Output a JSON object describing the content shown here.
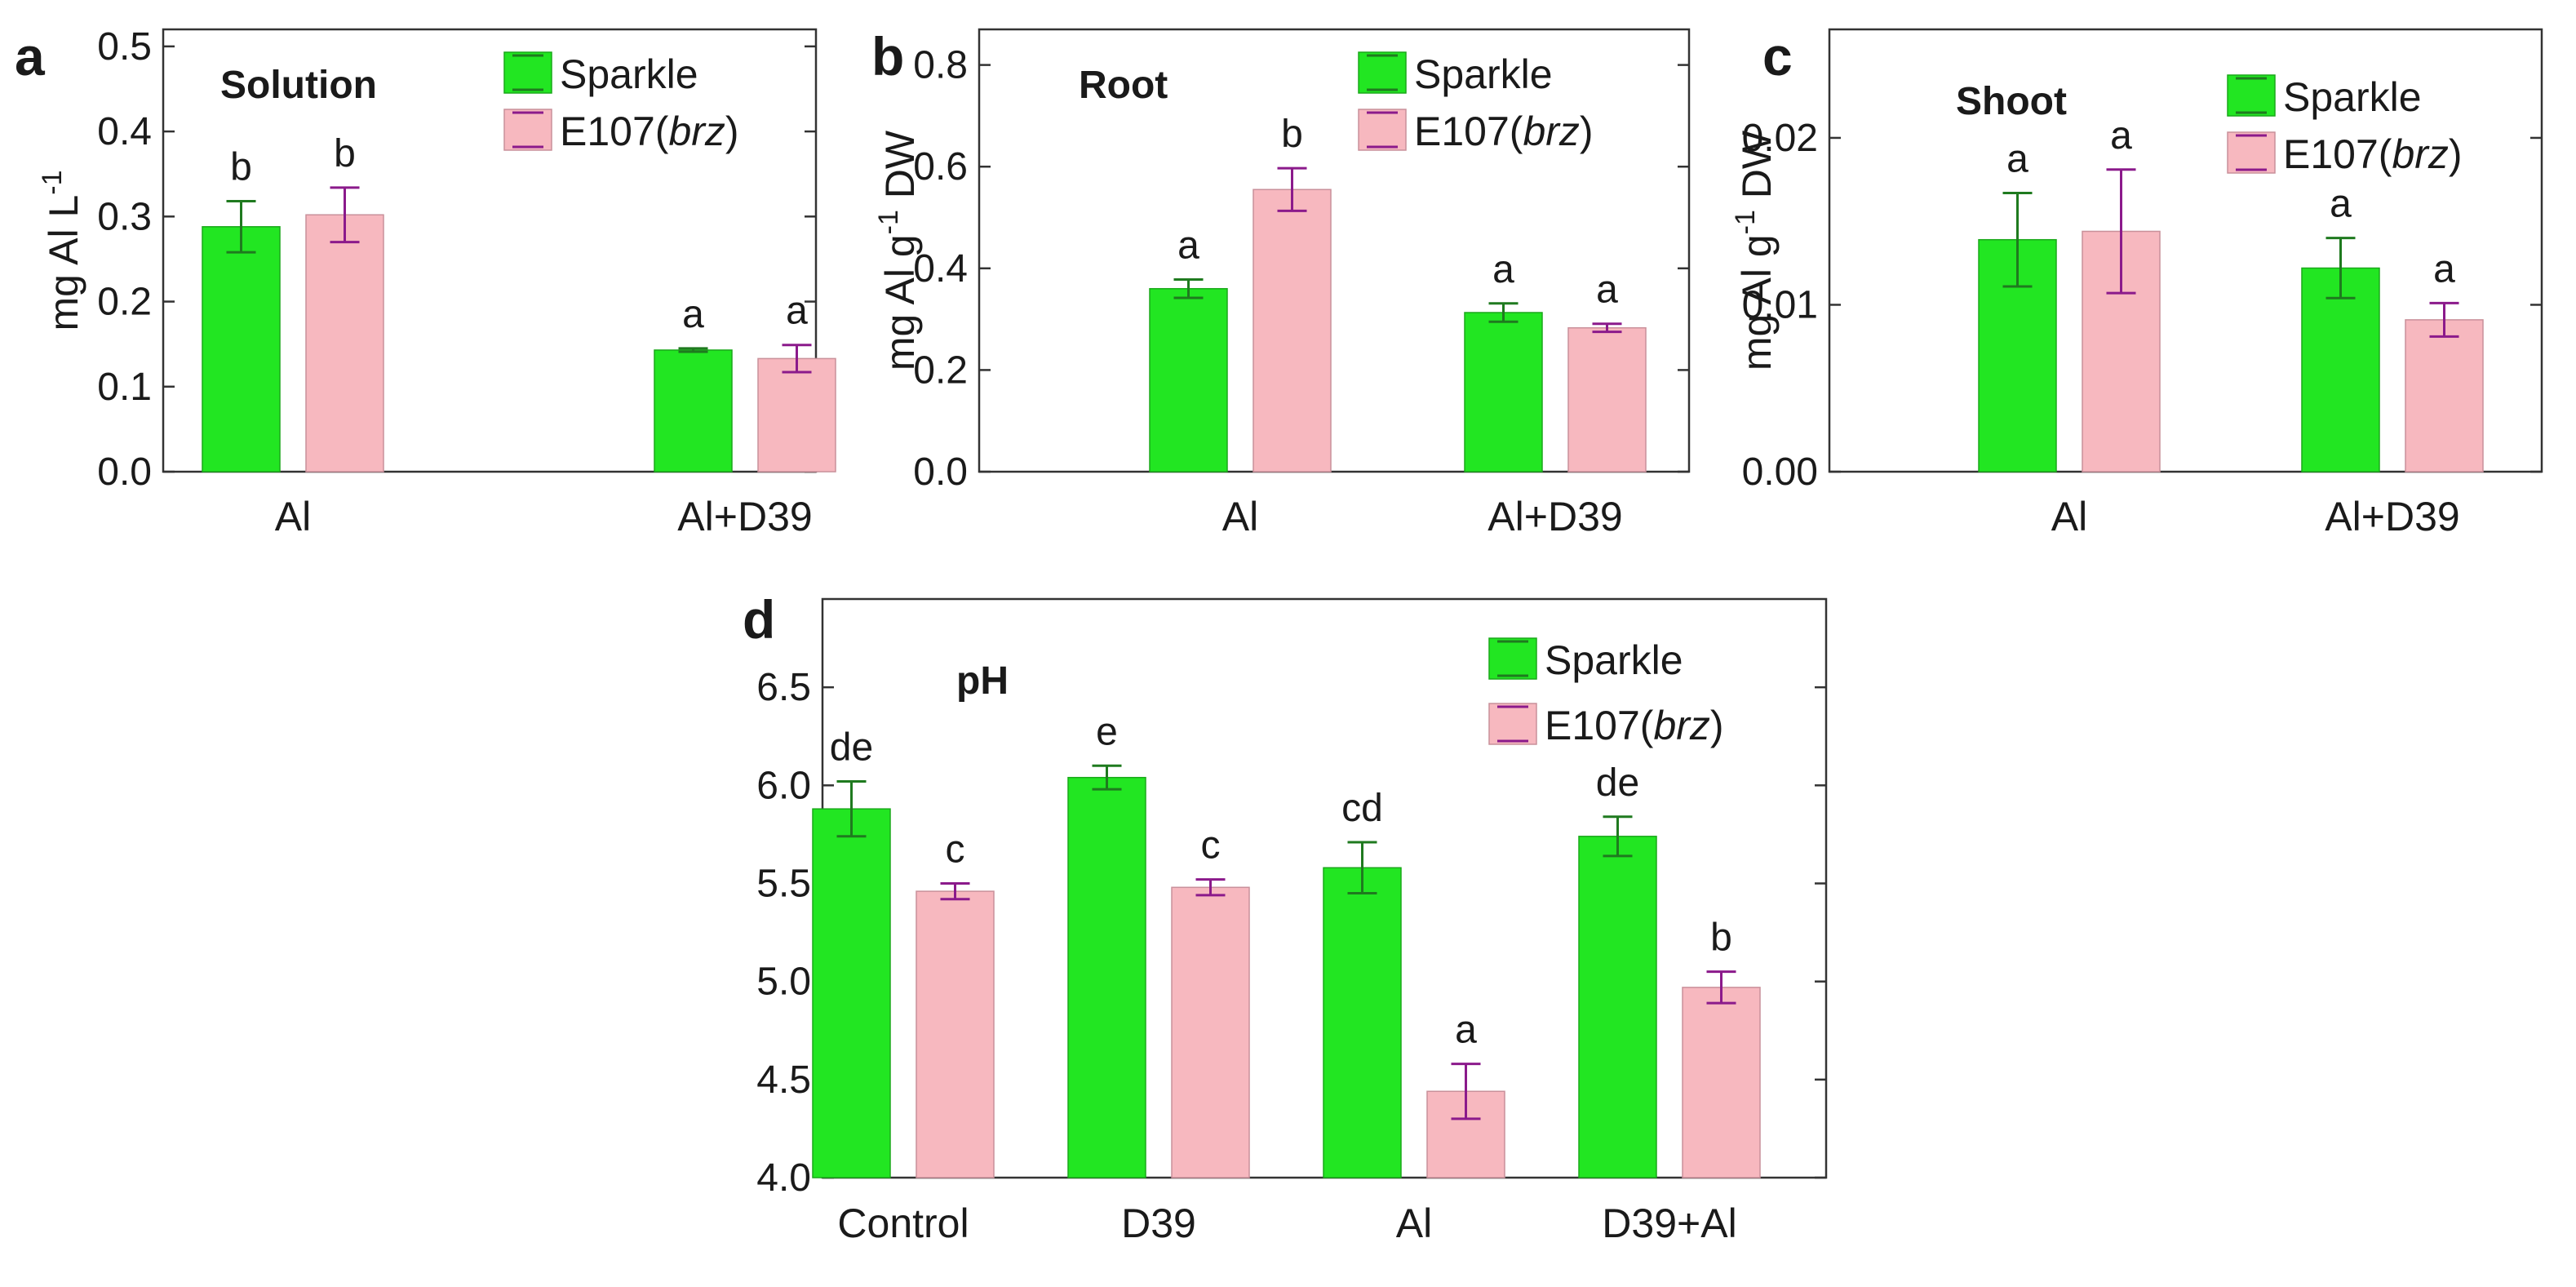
{
  "colors": {
    "sparkle_fill": "#22e622",
    "sparkle_edge": "#1aa81a",
    "sparkle_err": "#1f7a1f",
    "e107_fill": "#f7b8bf",
    "e107_edge": "#c9909a",
    "e107_err": "#8b1a8b"
  },
  "chart_data": [
    {
      "panel_label": "a",
      "type": "bar",
      "title": "Solution",
      "ylabel_main": "mg Al L",
      "ylabel_sup": "-1",
      "ylabel_tail": "",
      "categories": [
        "Al",
        "Al+D39"
      ],
      "ylim": [
        0,
        0.52
      ],
      "yticks": [
        "0.0",
        "0.1",
        "0.2",
        "0.3",
        "0.4",
        "0.5"
      ],
      "legend": {
        "position": "top-right",
        "sparkle": "Sparkle",
        "e107_prefix": "E107(",
        "e107_italic": "brz",
        "e107_suffix": ")"
      },
      "series": [
        {
          "name": "Sparkle",
          "values": [
            0.288,
            0.143
          ],
          "errors": [
            0.03,
            0.002
          ],
          "letters": [
            "b",
            "a"
          ]
        },
        {
          "name": "E107(brz)",
          "values": [
            0.302,
            0.133
          ],
          "errors": [
            0.032,
            0.016
          ],
          "letters": [
            "b",
            "a"
          ]
        }
      ]
    },
    {
      "panel_label": "b",
      "type": "bar",
      "title": "Root",
      "ylabel_main": "mg Al g",
      "ylabel_sup": "-1",
      "ylabel_tail": " DW",
      "categories": [
        "Al",
        "Al+D39"
      ],
      "ylim": [
        0,
        0.87
      ],
      "yticks": [
        "0.0",
        "0.2",
        "0.4",
        "0.6",
        "0.8"
      ],
      "legend": {
        "position": "top-right",
        "sparkle": "Sparkle",
        "e107_prefix": "E107(",
        "e107_italic": "brz",
        "e107_suffix": ")"
      },
      "series": [
        {
          "name": "Sparkle",
          "values": [
            0.36,
            0.313
          ],
          "errors": [
            0.018,
            0.018
          ],
          "letters": [
            "a",
            "a"
          ]
        },
        {
          "name": "E107(brz)",
          "values": [
            0.555,
            0.283
          ],
          "errors": [
            0.042,
            0.008
          ],
          "letters": [
            "b",
            "a"
          ]
        }
      ]
    },
    {
      "panel_label": "c",
      "type": "bar",
      "title": "Shoot",
      "ylabel_main": "mg Al g",
      "ylabel_sup": "-1",
      "ylabel_tail": " DW",
      "categories": [
        "Al",
        "Al+D39"
      ],
      "ylim": [
        0,
        0.0265
      ],
      "yticks": [
        "0.00",
        "0.01",
        "0.02"
      ],
      "ytick_values": [
        0,
        0.01,
        0.02
      ],
      "legend": {
        "position": "top-right",
        "sparkle": "Sparkle",
        "e107_prefix": "E107(",
        "e107_italic": "brz",
        "e107_suffix": ")"
      },
      "series": [
        {
          "name": "Sparkle",
          "values": [
            0.0139,
            0.0122
          ],
          "errors": [
            0.0028,
            0.0018
          ],
          "letters": [
            "a",
            "a"
          ]
        },
        {
          "name": "E107(brz)",
          "values": [
            0.0144,
            0.0091
          ],
          "errors": [
            0.0037,
            0.001
          ],
          "letters": [
            "a",
            "a"
          ]
        }
      ]
    },
    {
      "panel_label": "d",
      "type": "bar",
      "title": "pH",
      "ylabel_main": "",
      "ylabel_sup": "",
      "ylabel_tail": "",
      "categories": [
        "Control",
        "D39",
        "Al",
        "D39+Al"
      ],
      "ylim": [
        4.0,
        6.95
      ],
      "yticks": [
        "4.0",
        "4.5",
        "5.0",
        "5.5",
        "6.0",
        "6.5"
      ],
      "legend": {
        "position": "top-right",
        "sparkle": "Sparkle",
        "e107_prefix": "E107(",
        "e107_italic": "brz",
        "e107_suffix": ")"
      },
      "series": [
        {
          "name": "Sparkle",
          "values": [
            5.88,
            6.04,
            5.58,
            5.74
          ],
          "errors": [
            0.14,
            0.06,
            0.13,
            0.1
          ],
          "letters": [
            "de",
            "e",
            "cd",
            "de"
          ]
        },
        {
          "name": "E107(brz)",
          "values": [
            5.46,
            5.48,
            4.44,
            4.97
          ],
          "errors": [
            0.04,
            0.04,
            0.14,
            0.08
          ],
          "letters": [
            "c",
            "c",
            "a",
            "b"
          ]
        }
      ]
    }
  ]
}
